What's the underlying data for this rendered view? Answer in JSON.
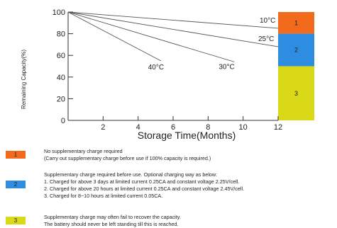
{
  "chart_data": {
    "type": "line",
    "xlabel": "Storage Time(Months)",
    "ylabel": "Remaining Capacity(%)",
    "x_ticks": [
      2,
      4,
      6,
      8,
      10,
      12
    ],
    "y_ticks": [
      0,
      20,
      40,
      60,
      80,
      100
    ],
    "xlim": [
      0,
      12
    ],
    "ylim": [
      0,
      100
    ],
    "grid": false,
    "series": [
      {
        "name": "10°C",
        "x": [
          0,
          12
        ],
        "y": [
          100,
          85
        ]
      },
      {
        "name": "25°C",
        "x": [
          0,
          12
        ],
        "y": [
          100,
          68
        ]
      },
      {
        "name": "30°C",
        "x": [
          0,
          9.5
        ],
        "y": [
          100,
          54
        ]
      },
      {
        "name": "40°C",
        "x": [
          0,
          5.3
        ],
        "y": [
          100,
          55
        ]
      }
    ],
    "zones": [
      {
        "label": "1",
        "from": 80,
        "to": 100,
        "color": "#f26a1b"
      },
      {
        "label": "2",
        "from": 50,
        "to": 80,
        "color": "#2e8de0"
      },
      {
        "label": "3",
        "from": 0,
        "to": 50,
        "color": "#d9d918"
      }
    ]
  },
  "legend": [
    {
      "label": "1",
      "color": "#f26a1b",
      "lines": [
        "No supplementary charge required",
        "(Carry out supplementary charge before use if 100% capacity is required.)"
      ]
    },
    {
      "label": "2",
      "color": "#2e8de0",
      "lines": [
        "Supplementary charge required before use. Optional charging way as below:",
        "1. Charged for above 3 days at limited current 0.25CA and constant voltage 2.25V/cell.",
        "2. Charged for above 20 hours at limited current 0.25CA and constant voltage 2.45V/cell.",
        "3. Charged for 8~10 hours at limited current 0.05CA."
      ]
    },
    {
      "label": "3",
      "color": "#d9d918",
      "lines": [
        "Supplementary charge may often fail to recover the capacity.",
        "The battery should never be left standing till this is reached."
      ]
    }
  ]
}
